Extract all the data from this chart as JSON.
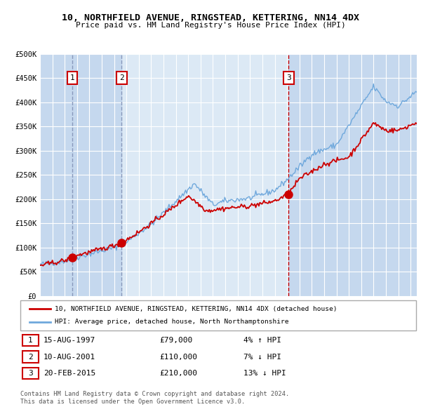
{
  "title": "10, NORTHFIELD AVENUE, RINGSTEAD, KETTERING, NN14 4DX",
  "subtitle": "Price paid vs. HM Land Registry's House Price Index (HPI)",
  "ylim": [
    0,
    500000
  ],
  "yticks": [
    0,
    50000,
    100000,
    150000,
    200000,
    250000,
    300000,
    350000,
    400000,
    450000,
    500000
  ],
  "ytick_labels": [
    "£0",
    "£50K",
    "£100K",
    "£150K",
    "£200K",
    "£250K",
    "£300K",
    "£350K",
    "£400K",
    "£450K",
    "£500K"
  ],
  "xlim_start": 1995.0,
  "xlim_end": 2025.5,
  "plot_bg_color": "#dce9f5",
  "grid_color": "#ffffff",
  "hpi_line_color": "#6fa8dc",
  "price_line_color": "#cc0000",
  "shade_color": "#c5d8ee",
  "sale1_x": 1997.62,
  "sale1_y": 79000,
  "sale2_x": 2001.61,
  "sale2_y": 110000,
  "sale3_x": 2015.13,
  "sale3_y": 210000,
  "shade1_xstart": 1995.0,
  "shade1_xend": 2001.61,
  "shade2_xstart": 2015.13,
  "shade2_xend": 2025.5,
  "legend_red_label": "10, NORTHFIELD AVENUE, RINGSTEAD, KETTERING, NN14 4DX (detached house)",
  "legend_blue_label": "HPI: Average price, detached house, North Northamptonshire",
  "table_data": [
    {
      "num": "1",
      "date": "15-AUG-1997",
      "price": "£79,000",
      "hpi": "4% ↑ HPI"
    },
    {
      "num": "2",
      "date": "10-AUG-2001",
      "price": "£110,000",
      "hpi": "7% ↓ HPI"
    },
    {
      "num": "3",
      "date": "20-FEB-2015",
      "price": "£210,000",
      "hpi": "13% ↓ HPI"
    }
  ],
  "footnote1": "Contains HM Land Registry data © Crown copyright and database right 2024.",
  "footnote2": "This data is licensed under the Open Government Licence v3.0."
}
